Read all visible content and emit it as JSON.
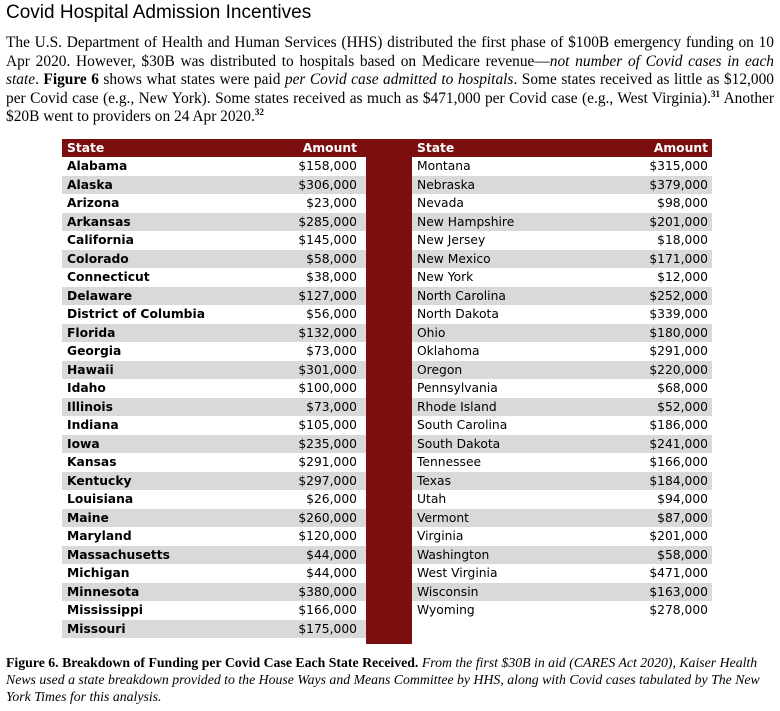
{
  "title": "Covid Hospital Admission Incentives",
  "intro": {
    "p1": "The U.S. Department of Health and Human Services (HHS) distributed the first phase of $100B emergency funding on 10 Apr 2020. However, $30B was distributed to hospitals based on Medicare revenue—",
    "p1_italic": "not number of Covid cases in each state",
    "p2": ". ",
    "fig_ref": "Figure 6",
    "p3": " shows what states were paid ",
    "p3_italic": "per Covid case admitted to hospitals",
    "p4": ". Some states received as little as $12,000 per Covid case (e.g., New York). Some states received as much as $471,000 per Covid case (e.g., West Virginia).",
    "ref1": "31",
    "p5": " Another $20B went to providers on 24 Apr 2020.",
    "ref2": "32"
  },
  "table": {
    "headers": {
      "state": "State",
      "amount": "Amount"
    },
    "left": [
      [
        "Alabama",
        "$158,000"
      ],
      [
        "Alaska",
        "$306,000"
      ],
      [
        "Arizona",
        "$23,000"
      ],
      [
        "Arkansas",
        "$285,000"
      ],
      [
        "California",
        "$145,000"
      ],
      [
        "Colorado",
        "$58,000"
      ],
      [
        "Connecticut",
        "$38,000"
      ],
      [
        "Delaware",
        "$127,000"
      ],
      [
        "District of Columbia",
        "$56,000"
      ],
      [
        "Florida",
        "$132,000"
      ],
      [
        "Georgia",
        "$73,000"
      ],
      [
        "Hawaii",
        "$301,000"
      ],
      [
        "Idaho",
        "$100,000"
      ],
      [
        "Illinois",
        "$73,000"
      ],
      [
        "Indiana",
        "$105,000"
      ],
      [
        "Iowa",
        "$235,000"
      ],
      [
        "Kansas",
        "$291,000"
      ],
      [
        "Kentucky",
        "$297,000"
      ],
      [
        "Louisiana",
        "$26,000"
      ],
      [
        "Maine",
        "$260,000"
      ],
      [
        "Maryland",
        "$120,000"
      ],
      [
        "Massachusetts",
        "$44,000"
      ],
      [
        "Michigan",
        "$44,000"
      ],
      [
        "Minnesota",
        "$380,000"
      ],
      [
        "Mississippi",
        "$166,000"
      ],
      [
        "Missouri",
        "$175,000"
      ]
    ],
    "right": [
      [
        "Montana",
        "$315,000"
      ],
      [
        "Nebraska",
        "$379,000"
      ],
      [
        "Nevada",
        "$98,000"
      ],
      [
        "New Hampshire",
        "$201,000"
      ],
      [
        "New Jersey",
        "$18,000"
      ],
      [
        "New Mexico",
        "$171,000"
      ],
      [
        "New York",
        "$12,000"
      ],
      [
        "North Carolina",
        "$252,000"
      ],
      [
        "North Dakota",
        "$339,000"
      ],
      [
        "Ohio",
        "$180,000"
      ],
      [
        "Oklahoma",
        "$291,000"
      ],
      [
        "Oregon",
        "$220,000"
      ],
      [
        "Pennsylvania",
        "$68,000"
      ],
      [
        "Rhode Island",
        "$52,000"
      ],
      [
        "South Carolina",
        "$186,000"
      ],
      [
        "South Dakota",
        "$241,000"
      ],
      [
        "Tennessee",
        "$166,000"
      ],
      [
        "Texas",
        "$184,000"
      ],
      [
        "Utah",
        "$94,000"
      ],
      [
        "Vermont",
        "$87,000"
      ],
      [
        "Virginia",
        "$201,000"
      ],
      [
        "Washington",
        "$58,000"
      ],
      [
        "West Virginia",
        "$471,000"
      ],
      [
        "Wisconsin",
        "$163,000"
      ],
      [
        "Wyoming",
        "$278,000"
      ]
    ]
  },
  "caption": {
    "bold": "Figure 6. Breakdown of Funding per Covid Case Each State Received.",
    "italic": " From the first $30B in aid (CARES Act 2020), Kaiser Health News used a state breakdown provided to the House Ways and Means Committee by HHS, along with Covid cases tabulated by The New York Times for this analysis."
  },
  "colors": {
    "header_bg": "#7b0f10",
    "row_shade": "#d9d9d9"
  }
}
